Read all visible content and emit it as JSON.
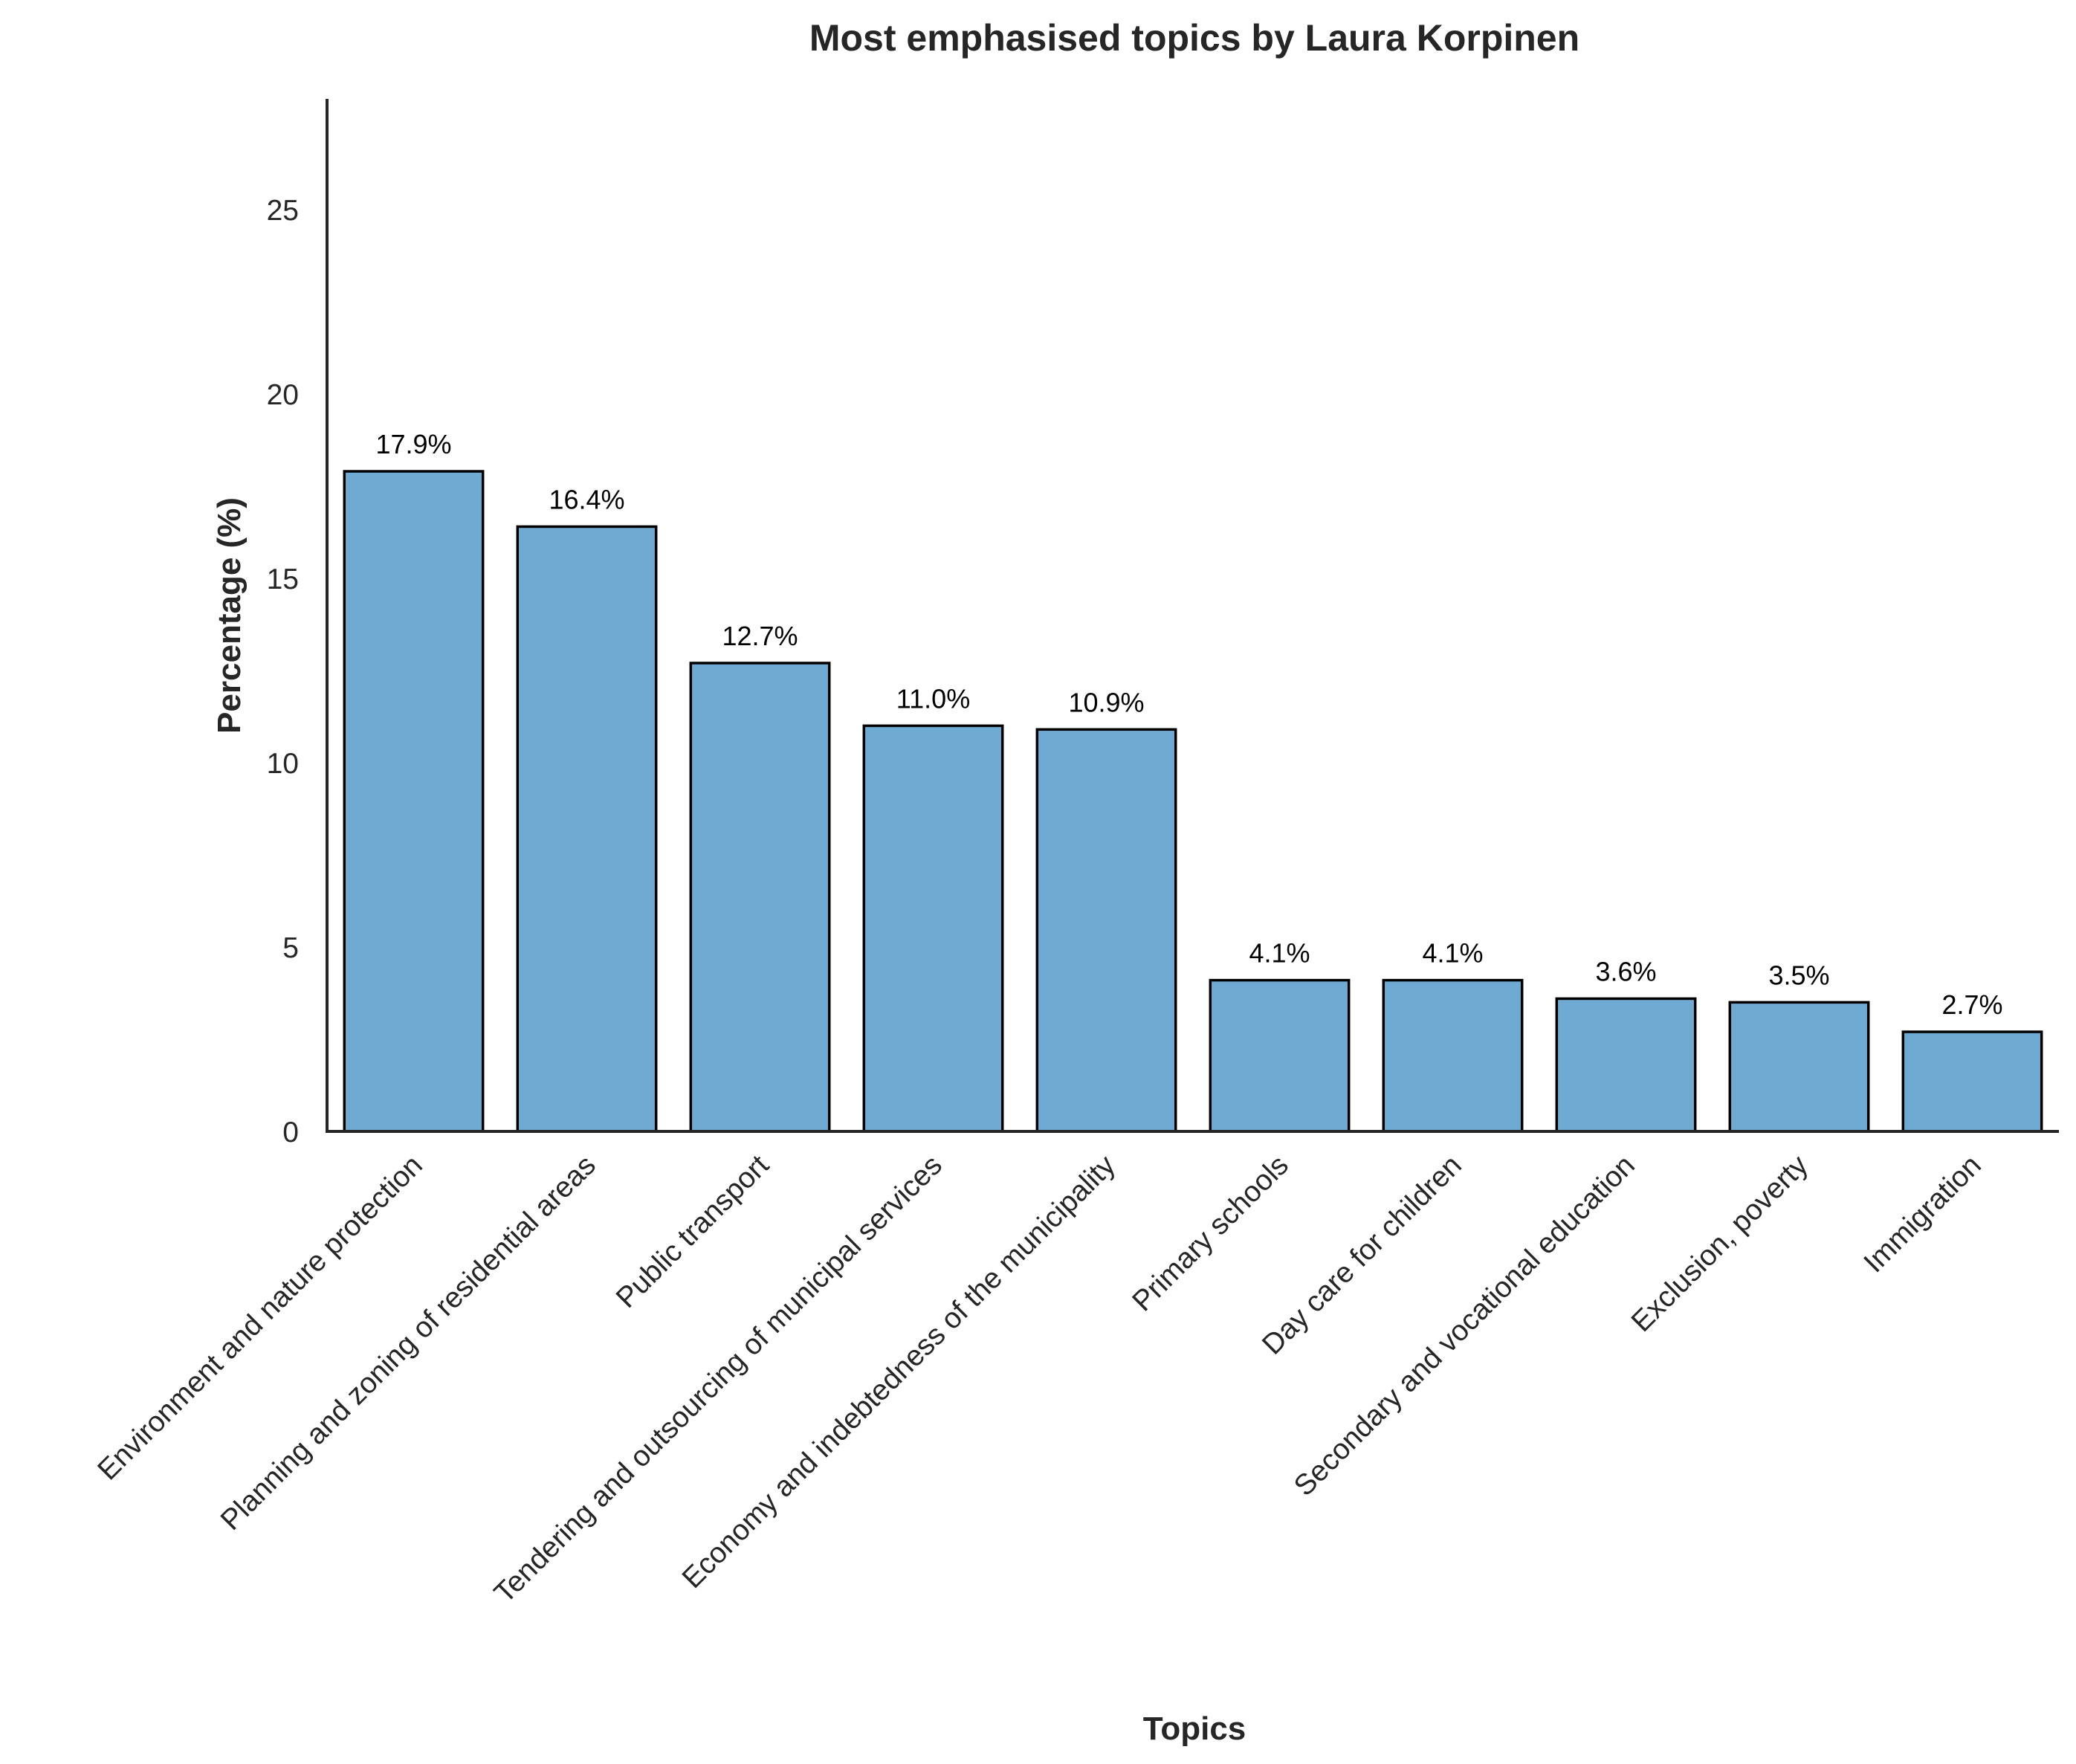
{
  "chart_data": {
    "type": "bar",
    "title": "Most emphasised topics by Laura Korpinen",
    "xlabel": "Topics",
    "ylabel": "Percentage (%)",
    "ylim": [
      0,
      28
    ],
    "yticks": [
      0,
      5,
      10,
      15,
      20,
      25
    ],
    "grid": false,
    "bar_color": "#6faad2",
    "categories": [
      "Environment and nature protection",
      "Planning and zoning of residential areas",
      "Public transport",
      "Tendering and outsourcing of municipal services",
      "Economy and indebtedness of the municipality",
      "Primary schools",
      "Day care for children",
      "Secondary and vocational education",
      "Exclusion, poverty",
      "Immigration"
    ],
    "values": [
      17.9,
      16.4,
      12.7,
      11.0,
      10.9,
      4.1,
      4.1,
      3.6,
      3.5,
      2.7
    ],
    "value_labels": [
      "17.9%",
      "16.4%",
      "12.7%",
      "11.0%",
      "10.9%",
      "4.1%",
      "4.1%",
      "3.6%",
      "3.5%",
      "2.7%"
    ]
  }
}
